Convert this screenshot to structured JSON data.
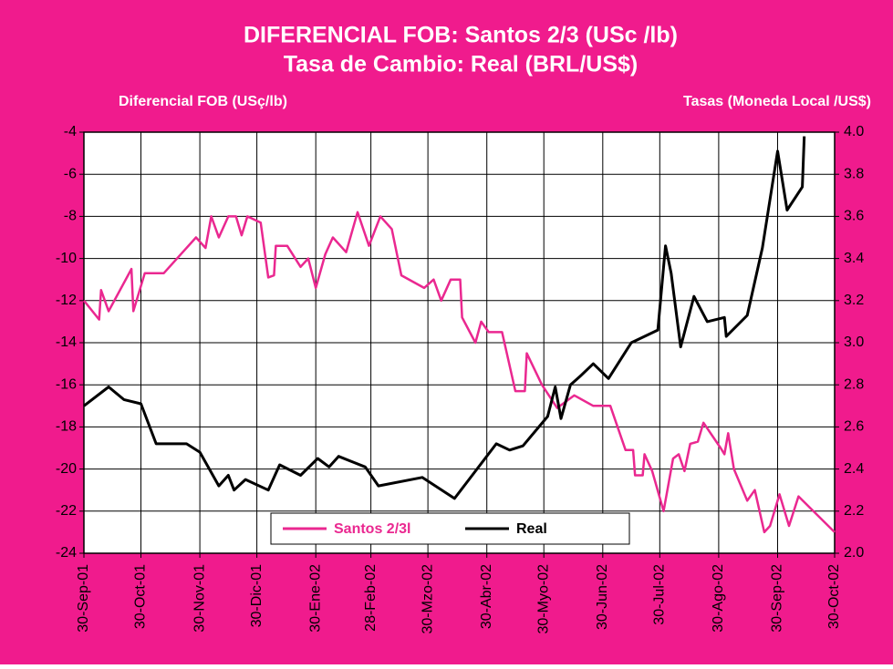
{
  "chart_data": {
    "type": "line",
    "title": "DIFERENCIAL FOB: Santos 2/3 (USc /lb)",
    "subtitle": "Tasa de Cambio: Real (BRL/US$)",
    "ylabel": "Diferencial FOB (USç/lb)",
    "y2label": "Tasas (Moneda Local /US$)",
    "background": "#f01b8d",
    "grid": true,
    "xlim": [
      "2001-09-30",
      "2002-10-30"
    ],
    "xticks": [
      {
        "value": "2001-09-30",
        "label": "30-Sep-01"
      },
      {
        "value": "2001-10-30",
        "label": "30-Oct-01"
      },
      {
        "value": "2001-11-30",
        "label": "30-Nov-01"
      },
      {
        "value": "2001-12-30",
        "label": "30-Dic-01"
      },
      {
        "value": "2002-01-30",
        "label": "30-Ene-02"
      },
      {
        "value": "2002-02-28",
        "label": "28-Feb-02"
      },
      {
        "value": "2002-03-30",
        "label": "30-Mzo-02"
      },
      {
        "value": "2002-04-30",
        "label": "30-Abr-02"
      },
      {
        "value": "2002-05-30",
        "label": "30-Myo-02"
      },
      {
        "value": "2002-06-30",
        "label": "30-Jun-02"
      },
      {
        "value": "2002-07-30",
        "label": "30-Jul-02"
      },
      {
        "value": "2002-08-30",
        "label": "30-Ago-02"
      },
      {
        "value": "2002-09-30",
        "label": "30-Sep-02"
      },
      {
        "value": "2002-10-30",
        "label": "30-Oct-02"
      }
    ],
    "ylim": [
      -24,
      -4
    ],
    "yticks": [
      -24,
      -22,
      -20,
      -18,
      -16,
      -14,
      -12,
      -10,
      -8,
      -6,
      -4
    ],
    "y2lim": [
      2,
      4
    ],
    "y2ticks": [
      {
        "value": 2,
        "label": "2.0"
      },
      2.2,
      2.4,
      2.6,
      2.8,
      {
        "value": 3,
        "label": "3.0"
      },
      3.2,
      3.4,
      3.6,
      3.8,
      {
        "value": 4,
        "label": "4.0"
      }
    ],
    "series": [
      {
        "name": "Santos 2/3l",
        "color": "#ea2890",
        "x": [
          "2001-09-30",
          "2001-10-08",
          "2001-10-09",
          "2001-10-13",
          "2001-10-25",
          "2001-10-26",
          "2001-11-01",
          "2001-11-11",
          "2001-11-21",
          "2001-11-28",
          "2001-12-03",
          "2001-12-06",
          "2001-12-10",
          "2001-12-15",
          "2001-12-19",
          "2001-12-22",
          "2001-12-25",
          "2002-01-01",
          "2002-01-05",
          "2002-01-08",
          "2002-01-09",
          "2002-01-15",
          "2002-01-22",
          "2002-01-26",
          "2002-01-30",
          "2002-02-04",
          "2002-02-08",
          "2002-02-15",
          "2002-02-21",
          "2002-02-27",
          "2002-03-05",
          "2002-03-11",
          "2002-03-16",
          "2002-03-28",
          "2002-04-02",
          "2002-04-06",
          "2002-04-11",
          "2002-04-16",
          "2002-04-17",
          "2002-04-24",
          "2002-04-27",
          "2002-05-01",
          "2002-05-08",
          "2002-05-15",
          "2002-05-20",
          "2002-05-21",
          "2002-05-29",
          "2002-06-06",
          "2002-06-15",
          "2002-06-25",
          "2002-07-04",
          "2002-07-12",
          "2002-07-16",
          "2002-07-17",
          "2002-07-21",
          "2002-07-22",
          "2002-07-26",
          "2002-08-01",
          "2002-08-06",
          "2002-08-09",
          "2002-08-12",
          "2002-08-15",
          "2002-08-19",
          "2002-08-22",
          "2002-08-31",
          "2002-09-02",
          "2002-09-04",
          "2002-09-07",
          "2002-09-14",
          "2002-09-18",
          "2002-09-23",
          "2002-09-26",
          "2002-10-01",
          "2002-10-06",
          "2002-10-11",
          "2002-10-30"
        ],
        "values": [
          -12,
          -12.9,
          -11.5,
          -12.5,
          -10.5,
          -12.5,
          -10.7,
          -10.7,
          -9.7,
          -9,
          -9.5,
          -8,
          -9,
          -8,
          -8,
          -8.9,
          -8,
          -8.3,
          -10.9,
          -10.8,
          -9.4,
          -9.4,
          -10.4,
          -10,
          -11.4,
          -9.8,
          -9,
          -9.7,
          -7.8,
          -9.4,
          -8,
          -8.6,
          -10.8,
          -11.4,
          -11,
          -12,
          -11,
          -11,
          -12.8,
          -14,
          -13,
          -13.5,
          -13.5,
          -16.3,
          -16.3,
          -14.5,
          -16,
          -17.1,
          -16.5,
          -17,
          -17,
          -19.1,
          -19.1,
          -20.3,
          -20.3,
          -19.3,
          -20.1,
          -22,
          -19.5,
          -19.3,
          -20.1,
          -18.8,
          -18.7,
          -17.8,
          -19,
          -19.3,
          -18.3,
          -20,
          -21.5,
          -21,
          -23,
          -22.7,
          -21.2,
          -22.7,
          -21.3,
          -23
        ]
      },
      {
        "name": "Real",
        "color": "#000000",
        "axis": "y2",
        "x": [
          "2001-09-30",
          "2001-10-13",
          "2001-10-21",
          "2001-10-30",
          "2001-11-07",
          "2001-11-23",
          "2001-11-30",
          "2001-12-10",
          "2001-12-15",
          "2001-12-18",
          "2001-12-24",
          "2002-01-05",
          "2002-01-11",
          "2002-01-22",
          "2002-01-31",
          "2002-02-06",
          "2002-02-11",
          "2002-02-25",
          "2002-03-04",
          "2002-03-27",
          "2002-04-13",
          "2002-05-05",
          "2002-05-12",
          "2002-05-19",
          "2002-06-01",
          "2002-06-05",
          "2002-06-08",
          "2002-06-13",
          "2002-06-18",
          "2002-06-25",
          "2002-07-03",
          "2002-07-15",
          "2002-07-29",
          "2002-08-02",
          "2002-08-05",
          "2002-08-10",
          "2002-08-17",
          "2002-08-24",
          "2002-09-02",
          "2002-09-03",
          "2002-09-14",
          "2002-09-22",
          "2002-09-30",
          "2002-10-05",
          "2002-10-13",
          "2002-10-14"
        ],
        "values": [
          2.7,
          2.79,
          2.73,
          2.71,
          2.52,
          2.52,
          2.48,
          2.32,
          2.37,
          2.3,
          2.35,
          2.3,
          2.42,
          2.37,
          2.45,
          2.41,
          2.46,
          2.41,
          2.32,
          2.36,
          2.26,
          2.52,
          2.49,
          2.51,
          2.65,
          2.79,
          2.64,
          2.8,
          2.84,
          2.9,
          2.83,
          3,
          3.06,
          3.46,
          3.33,
          2.98,
          3.22,
          3.1,
          3.12,
          3.03,
          3.13,
          3.45,
          3.91,
          3.63,
          3.74,
          3.98
        ]
      }
    ]
  }
}
